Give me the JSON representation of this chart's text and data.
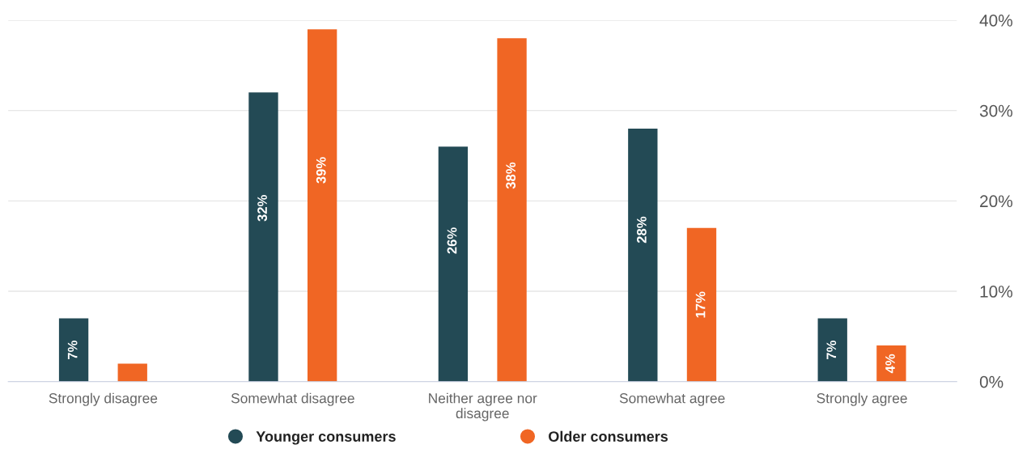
{
  "chart_data": {
    "type": "bar",
    "categories": [
      "Strongly disagree",
      "Somewhat disagree",
      "Neither agree nor\ndisagree",
      "Somewhat agree",
      "Strongly agree"
    ],
    "series": [
      {
        "name": "Younger consumers",
        "color": "#234a55",
        "values": [
          7,
          32,
          26,
          28,
          7
        ],
        "value_labels": [
          "7%",
          "32%",
          "26%",
          "28%",
          "7%"
        ]
      },
      {
        "name": "Older consumers",
        "color": "#f06624",
        "values": [
          2,
          39,
          38,
          17,
          4
        ],
        "value_labels": [
          null,
          "39%",
          "38%",
          "17%",
          "4%"
        ]
      }
    ],
    "ylim": [
      0,
      40
    ],
    "yticks": [
      {
        "value": 0,
        "label": "0%"
      },
      {
        "value": 10,
        "label": "10%"
      },
      {
        "value": 20,
        "label": "20%"
      },
      {
        "value": 30,
        "label": "30%"
      },
      {
        "value": 40,
        "label": "40%"
      }
    ],
    "grid": "y",
    "legend": "bottom"
  }
}
